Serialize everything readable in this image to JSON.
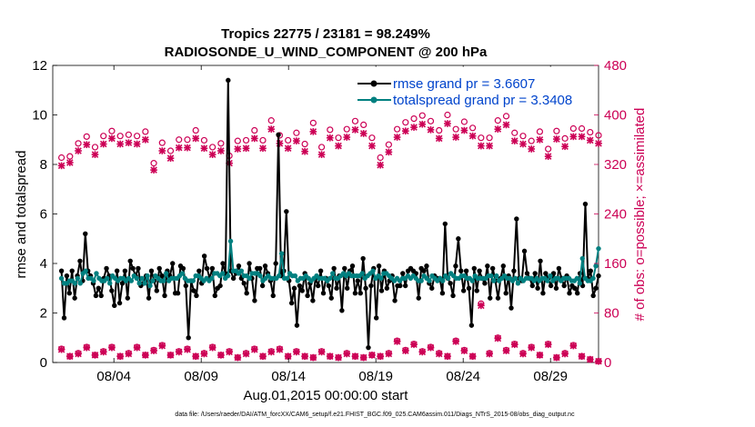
{
  "chart_data": {
    "type": "line",
    "title": "Tropics 22775 / 23181 = 98.249%",
    "subtitle": "RADIOSONDE_U_WIND_COMPONENT @ 200 hPa",
    "xlabel": "Aug.01,2015 00:00:00 start",
    "ylabel_left": "rmse and totalspread",
    "ylabel_right": "# of obs: o=possible; ×=assimilated",
    "footnote": "data file: /Users/raeder/DAI/ATM_forcXX/CAM6_setup/f.e21.FHIST_BGC.f09_025.CAM6assim.011/Diags_NTrS_2015-08/obs_diag_output.nc",
    "xlim": [
      0.5,
      31.75
    ],
    "ylim_left": [
      0,
      12
    ],
    "ylim_right": [
      0,
      480
    ],
    "x_ticks": [
      4,
      9,
      14,
      19,
      24,
      29
    ],
    "x_tick_labels": [
      "08/04",
      "08/09",
      "08/14",
      "08/19",
      "08/24",
      "08/29"
    ],
    "y_left_ticks": [
      "0",
      "2",
      "4",
      "6",
      "8",
      "10",
      "12"
    ],
    "y_right_ticks": [
      "0",
      "80",
      "160",
      "240",
      "320",
      "400",
      "480"
    ],
    "colors": {
      "rmse": "#000000",
      "spread": "#008080",
      "obs": "#cc0055",
      "legend_text": "#0044cc"
    },
    "series": [
      {
        "name": "rmse grand pr = 3.6607",
        "axis": "left",
        "values": [
          3.7,
          1.8,
          3.5,
          2.8,
          3.7,
          2.6,
          3.5,
          4.1,
          3.3,
          5.2,
          3.7,
          3.5,
          3.2,
          2.7,
          3.0,
          2.7,
          3.4,
          3.8,
          3.5,
          2.9,
          2.3,
          3.7,
          2.4,
          3.2,
          3.7,
          2.6,
          4.1,
          3.8,
          3.5,
          3.8,
          3.1,
          3.2,
          3.5,
          2.6,
          3.7,
          3.3,
          2.9,
          3.8,
          3.5,
          2.7,
          3.7,
          3.5,
          4.0,
          2.8,
          2.8,
          3.9,
          3.8,
          3.1,
          1.0,
          3.3,
          2.9,
          2.7,
          3.7,
          3.2,
          4.3,
          3.8,
          3.4,
          3.8,
          2.7,
          3.0,
          3.1,
          4.0,
          3.6,
          11.4,
          3.7,
          3.4,
          3.6,
          3.9,
          3.4,
          3.2,
          2.8,
          4.0,
          3.4,
          2.5,
          3.8,
          3.8,
          3.1,
          3.9,
          3.6,
          3.3,
          2.7,
          4.0,
          9.2,
          3.5,
          3.7,
          6.1,
          3.3,
          2.4,
          3.0,
          1.5,
          3.1,
          2.9,
          3.6,
          2.7,
          3.2,
          2.5,
          3.4,
          3.1,
          3.7,
          2.8,
          3.4,
          3.1,
          2.6,
          3.8,
          3.0,
          3.5,
          2.1,
          3.8,
          3.0,
          3.7,
          3.9,
          2.8,
          3.3,
          2.8,
          4.2,
          3.0,
          0.6,
          3.1,
          3.8,
          1.8,
          3.9,
          2.9,
          3.7,
          3.0,
          3.3,
          3.5,
          2.5,
          3.1,
          3.1,
          3.6,
          3.1,
          3.7,
          3.8,
          3.7,
          3.6,
          2.6,
          3.8,
          3.7,
          3.9,
          3.2,
          3.0,
          3.5,
          3.4,
          3.4,
          2.8,
          5.6,
          3.4,
          3.2,
          2.7,
          3.9,
          5.0,
          3.7,
          2.9,
          3.7,
          3.0,
          1.5,
          3.8,
          2.9,
          3.7,
          3.4,
          3.2,
          3.9,
          2.6,
          3.8,
          3.3,
          2.6,
          3.4,
          3.9,
          2.8,
          3.5,
          2.2,
          3.7,
          5.8,
          3.4,
          3.3,
          4.5,
          3.6,
          3.4,
          3.1,
          3.6,
          3.0,
          4.1,
          2.8,
          3.6,
          3.4,
          3.1,
          3.6,
          3.0,
          3.8,
          3.4,
          3.1,
          3.5,
          2.8,
          3.1,
          3.0,
          2.8,
          3.6,
          3.1,
          6.4,
          3.4,
          3.7,
          2.7,
          3.0,
          3.5
        ]
      },
      {
        "name": "totalspread grand pr = 3.3408",
        "axis": "left",
        "values": [
          3.4,
          3.2,
          3.2,
          3.3,
          3.3,
          3.2,
          3.4,
          3.2,
          3.6,
          3.7,
          3.4,
          3.4,
          3.3,
          3.6,
          3.4,
          3.3,
          3.3,
          3.4,
          3.2,
          3.5,
          3.4,
          3.3,
          3.4,
          3.4,
          3.3,
          3.4,
          3.3,
          3.5,
          3.4,
          3.2,
          3.4,
          3.2,
          3.5,
          3.1,
          3.3,
          3.5,
          3.4,
          3.3,
          3.3,
          3.6,
          3.3,
          3.4,
          3.4,
          3.4,
          3.5,
          3.6,
          3.4,
          3.3,
          3.3,
          3.3,
          3.5,
          3.5,
          3.4,
          3.3,
          3.4,
          3.3,
          3.4,
          3.6,
          3.6,
          3.5,
          3.6,
          3.4,
          3.5,
          4.9,
          3.7,
          3.7,
          3.6,
          3.7,
          3.5,
          3.5,
          3.4,
          3.6,
          3.6,
          3.6,
          3.5,
          3.3,
          3.4,
          3.5,
          3.4,
          3.4,
          3.4,
          3.5,
          4.4,
          3.4,
          3.4,
          3.6,
          3.5,
          3.5,
          3.3,
          3.4,
          3.4,
          3.5,
          3.4,
          3.3,
          3.4,
          3.5,
          3.4,
          3.4,
          3.4,
          3.3,
          3.4,
          3.6,
          3.4,
          3.4,
          3.5,
          3.6,
          3.5,
          3.6,
          3.5,
          3.5,
          3.5,
          3.5,
          3.6,
          3.4,
          3.5,
          3.6,
          3.7,
          3.4,
          3.5,
          3.4,
          3.6,
          3.6,
          3.5,
          3.4,
          3.3,
          3.4,
          3.3,
          3.4,
          3.4,
          3.5,
          3.4,
          3.5,
          3.4,
          3.3,
          3.3,
          3.5,
          3.4,
          3.3,
          3.5,
          3.4,
          3.3,
          3.4,
          3.3,
          3.5,
          3.4,
          3.6,
          3.5,
          3.4,
          3.4,
          3.5,
          3.5,
          3.4,
          3.4,
          3.3,
          3.5,
          3.4,
          3.4,
          3.4,
          3.4,
          3.5,
          3.5,
          3.3,
          3.5,
          3.3,
          3.4,
          3.5,
          3.4,
          3.4,
          3.3,
          3.4,
          3.2,
          3.4,
          3.3,
          3.4,
          3.4,
          3.4,
          3.3,
          3.4,
          3.3,
          3.4,
          3.4,
          3.3,
          3.5,
          3.3,
          3.4,
          3.4,
          3.3,
          3.4,
          3.4,
          3.4,
          3.3,
          3.3,
          3.4,
          3.2,
          4.2,
          3.4,
          3.3,
          3.3,
          3.4,
          3.9,
          4.6
        ]
      }
    ],
    "obs_possible_upper": [
      331,
      333,
      354,
      365,
      348,
      366,
      374,
      366,
      368,
      366,
      373,
      322,
      355,
      342,
      360,
      360,
      375,
      359,
      348,
      354,
      334,
      358,
      359,
      375,
      359,
      391,
      367,
      359,
      371,
      353,
      387,
      348,
      376,
      363,
      377,
      390,
      384,
      363,
      331,
      352,
      377,
      388,
      394,
      399,
      390,
      375,
      400,
      377,
      389,
      379,
      363,
      363,
      391,
      398,
      371,
      366,
      358,
      373,
      345,
      374,
      362,
      378,
      378,
      372,
      367
    ],
    "obs_assimilated_upper": [
      318,
      323,
      342,
      352,
      336,
      353,
      362,
      353,
      355,
      353,
      360,
      311,
      342,
      330,
      347,
      347,
      362,
      346,
      336,
      342,
      322,
      345,
      346,
      362,
      346,
      377,
      354,
      346,
      358,
      341,
      373,
      336,
      363,
      350,
      364,
      376,
      370,
      350,
      319,
      340,
      364,
      374,
      380,
      385,
      376,
      362,
      386,
      364,
      375,
      366,
      350,
      350,
      377,
      384,
      358,
      353,
      345,
      360,
      333,
      361,
      349,
      365,
      365,
      359,
      354
    ],
    "obs_possible_lower": [
      22,
      10,
      15,
      25,
      12,
      18,
      25,
      10,
      15,
      25,
      12,
      20,
      28,
      12,
      18,
      22,
      10,
      15,
      25,
      12,
      18,
      8,
      15,
      22,
      10,
      18,
      22,
      10,
      18,
      10,
      8,
      18,
      10,
      8,
      15,
      10,
      8,
      12,
      10,
      15,
      35,
      20,
      30,
      18,
      25,
      15,
      10,
      35,
      20,
      10,
      95,
      15,
      40,
      20,
      30,
      15,
      25,
      12,
      30,
      8,
      15,
      28,
      10,
      5,
      2
    ],
    "obs_assimilated_lower": [
      21,
      10,
      14,
      24,
      12,
      17,
      24,
      10,
      14,
      24,
      12,
      19,
      27,
      12,
      17,
      21,
      10,
      14,
      24,
      12,
      17,
      8,
      14,
      21,
      10,
      17,
      21,
      10,
      17,
      10,
      8,
      17,
      10,
      8,
      14,
      10,
      8,
      12,
      10,
      14,
      34,
      19,
      29,
      17,
      24,
      14,
      10,
      34,
      19,
      10,
      92,
      14,
      39,
      19,
      29,
      14,
      24,
      12,
      29,
      8,
      14,
      27,
      10,
      5,
      2
    ]
  }
}
